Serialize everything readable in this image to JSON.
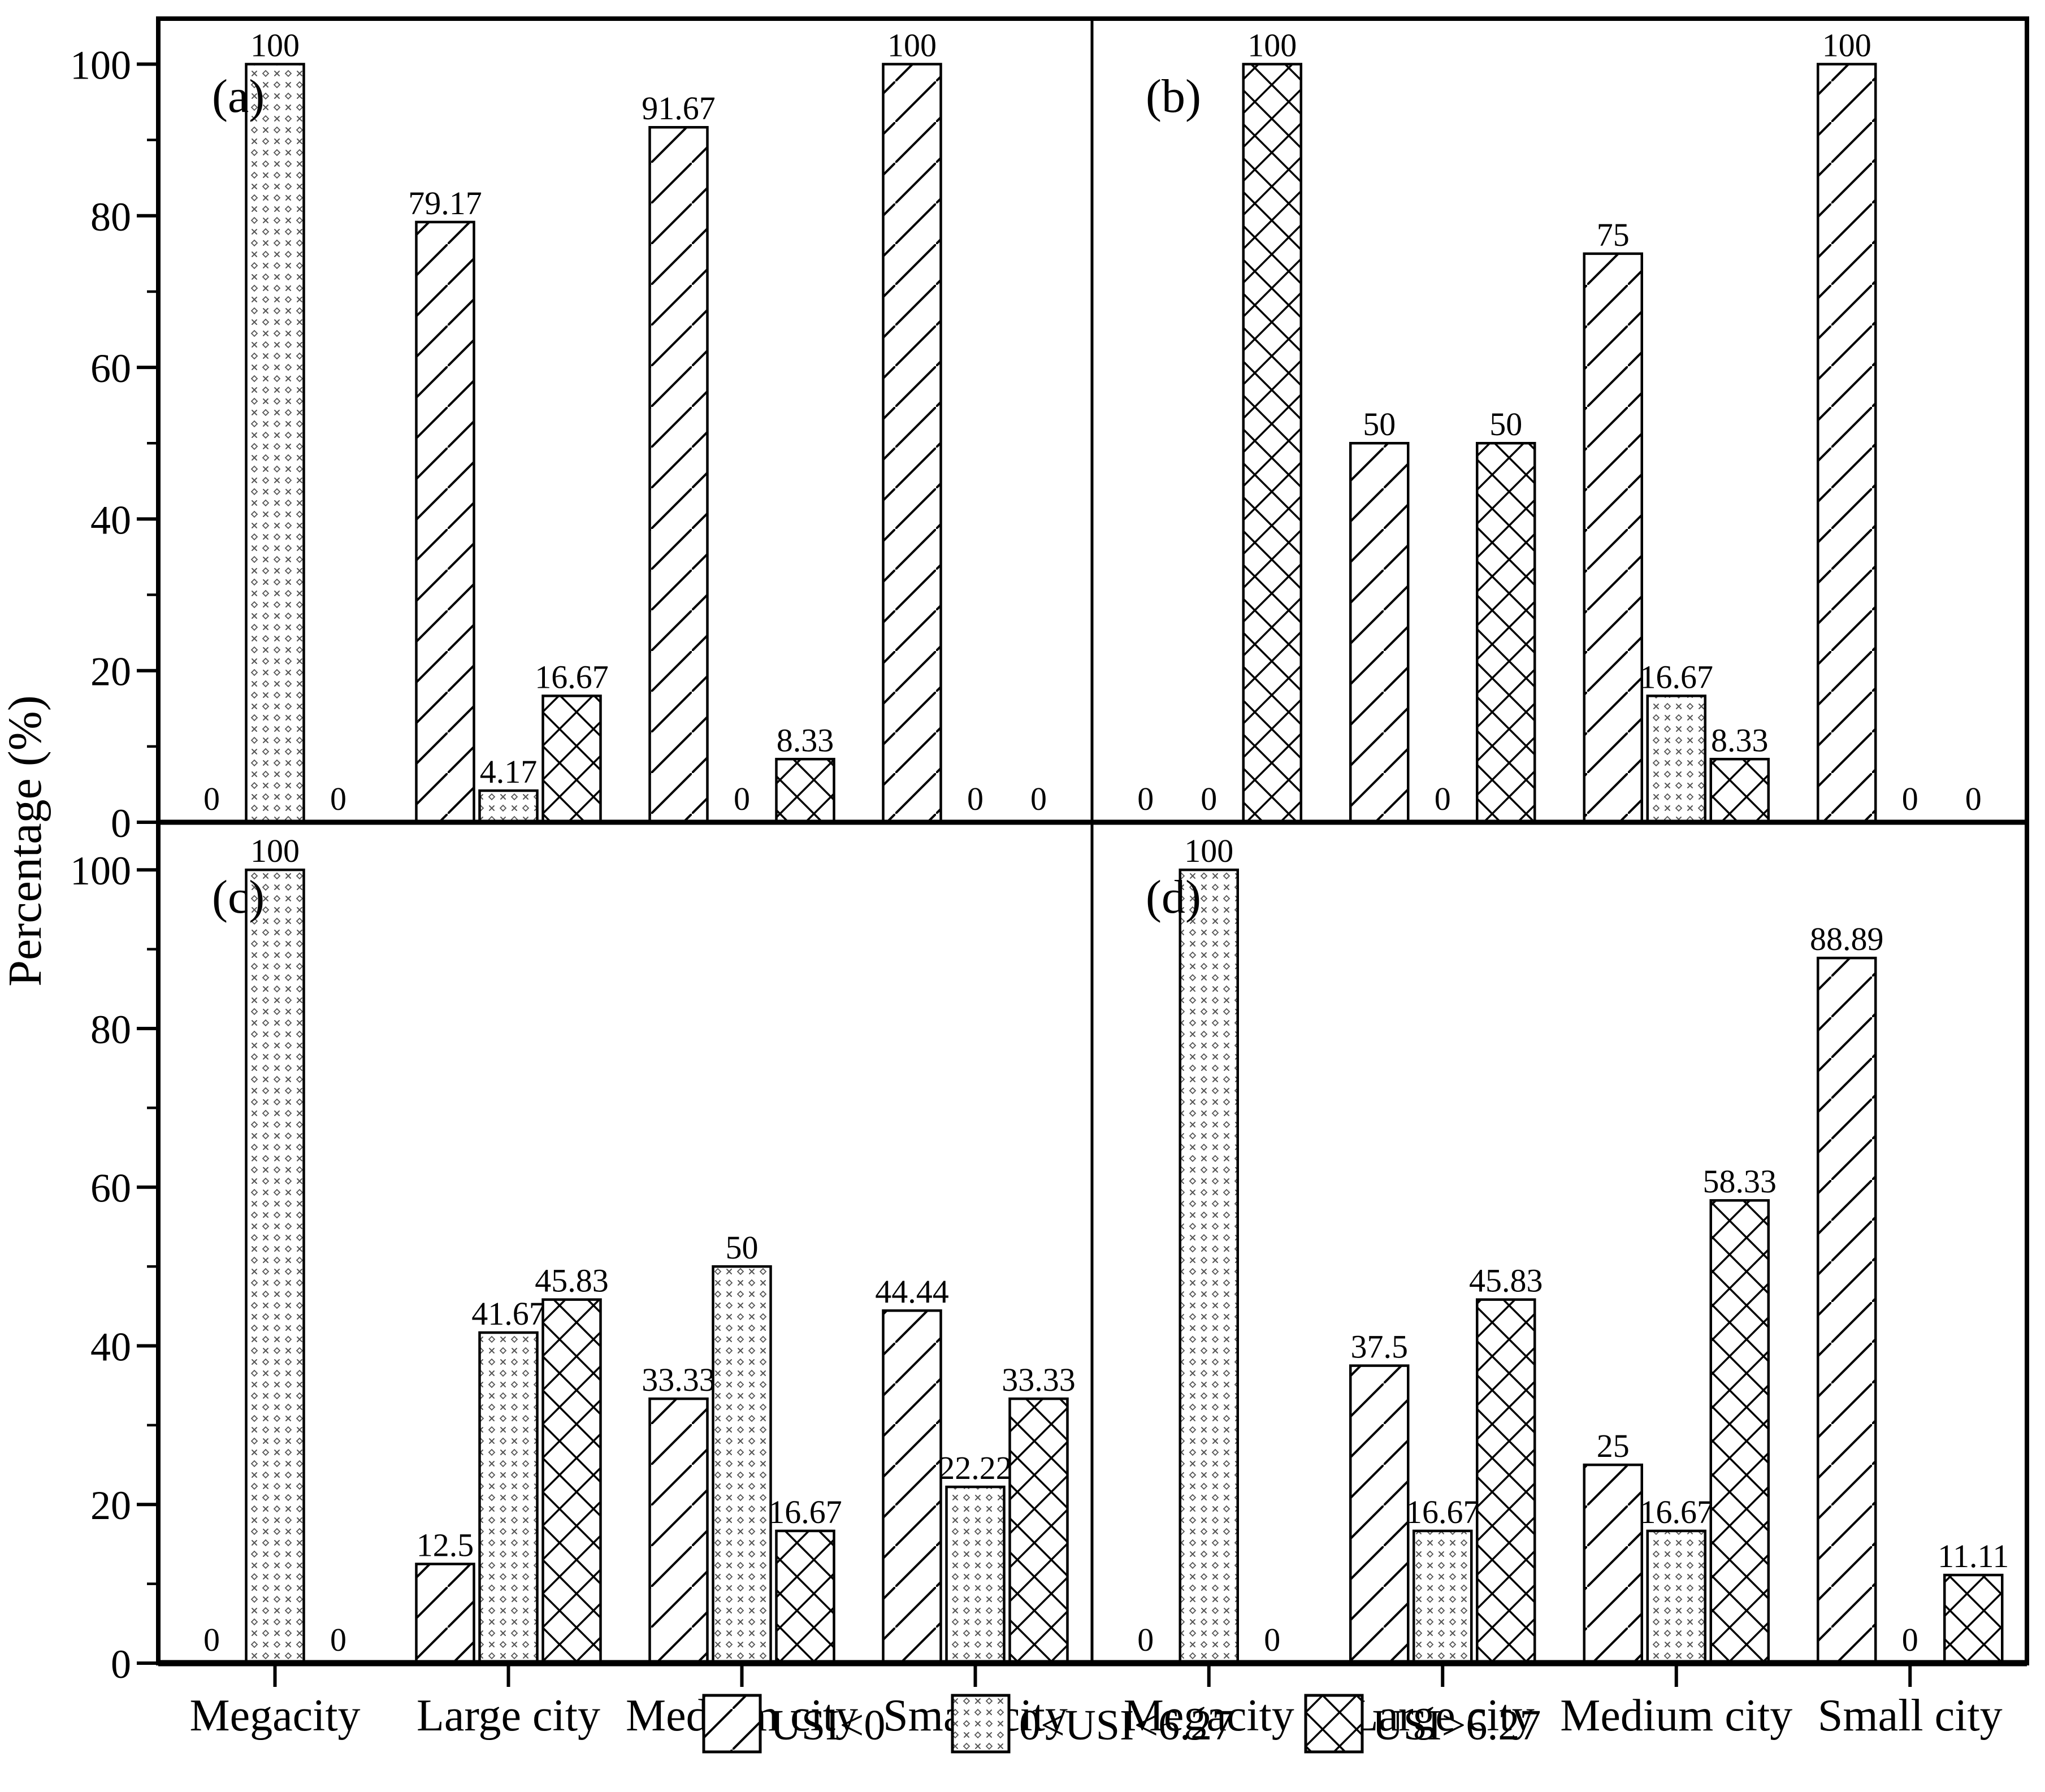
{
  "figure": {
    "ylabel": "Percentage (%)",
    "categories": [
      "Megacity",
      "Large city",
      "Medium city",
      "Small city"
    ],
    "panel_tags": [
      "(a)",
      "(b)",
      "(c)",
      "(d)"
    ],
    "yticks": [
      0,
      20,
      40,
      60,
      80,
      100
    ],
    "minor_yticks": [
      10,
      30,
      50,
      70,
      90
    ],
    "legend": [
      {
        "label": "USI<0",
        "pattern": "diagonal"
      },
      {
        "label": "0<USI<6.27",
        "pattern": "dots"
      },
      {
        "label": "USI>6.27",
        "pattern": "crosshatch"
      }
    ],
    "colors": {
      "foreground": "#000000",
      "background": "#ffffff",
      "dot_gray": "#555555"
    }
  },
  "chart_data": [
    {
      "type": "bar",
      "panel": "(a)",
      "categories": [
        "Megacity",
        "Large city",
        "Medium city",
        "Small city"
      ],
      "ylabel": "Percentage (%)",
      "ylim": [
        0,
        100
      ],
      "grid": false,
      "series": [
        {
          "name": "USI<0",
          "values": [
            0,
            79.17,
            91.67,
            100
          ]
        },
        {
          "name": "0<USI<6.27",
          "values": [
            100,
            4.17,
            0,
            0
          ]
        },
        {
          "name": "USI>6.27",
          "values": [
            0,
            16.67,
            8.33,
            0
          ]
        }
      ]
    },
    {
      "type": "bar",
      "panel": "(b)",
      "categories": [
        "Megacity",
        "Large city",
        "Medium city",
        "Small city"
      ],
      "ylabel": "Percentage (%)",
      "ylim": [
        0,
        100
      ],
      "grid": false,
      "series": [
        {
          "name": "USI<0",
          "values": [
            0,
            50,
            75,
            100
          ]
        },
        {
          "name": "0<USI<6.27",
          "values": [
            0,
            0,
            16.67,
            0
          ]
        },
        {
          "name": "USI>6.27",
          "values": [
            100,
            50,
            8.33,
            0
          ]
        }
      ]
    },
    {
      "type": "bar",
      "panel": "(c)",
      "categories": [
        "Megacity",
        "Large city",
        "Medium city",
        "Small city"
      ],
      "ylabel": "Percentage (%)",
      "ylim": [
        0,
        100
      ],
      "grid": false,
      "series": [
        {
          "name": "USI<0",
          "values": [
            0,
            12.5,
            33.33,
            44.44
          ]
        },
        {
          "name": "0<USI<6.27",
          "values": [
            100,
            41.67,
            50,
            22.22
          ]
        },
        {
          "name": "USI>6.27",
          "values": [
            0,
            45.83,
            16.67,
            33.33
          ]
        }
      ]
    },
    {
      "type": "bar",
      "panel": "(d)",
      "categories": [
        "Megacity",
        "Large city",
        "Medium city",
        "Small city"
      ],
      "ylabel": "Percentage (%)",
      "ylim": [
        0,
        100
      ],
      "grid": false,
      "series": [
        {
          "name": "USI<0",
          "values": [
            0,
            37.5,
            25,
            88.89
          ]
        },
        {
          "name": "0<USI<6.27",
          "values": [
            100,
            16.67,
            16.67,
            0
          ]
        },
        {
          "name": "USI>6.27",
          "values": [
            0,
            45.83,
            58.33,
            11.11
          ]
        }
      ]
    }
  ]
}
